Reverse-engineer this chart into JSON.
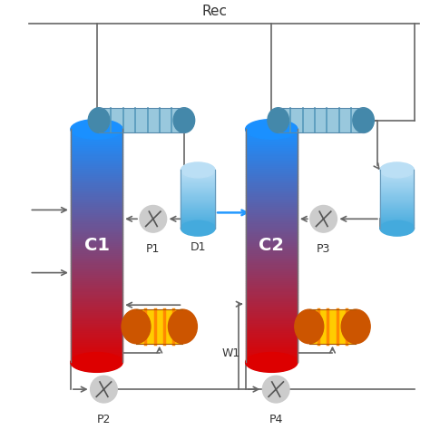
{
  "title": "Rec",
  "bg_color": "#ffffff",
  "C1_label": "C1",
  "C2_label": "C2",
  "D1_label": "D1",
  "P1_label": "P1",
  "P2_label": "P2",
  "P3_label": "P3",
  "P4_label": "P4",
  "W1_label": "W1",
  "col_top_color": "#1a90ff",
  "col_bot_color": "#dd0000",
  "cond_color1": "#99c8dd",
  "cond_color2": "#5599bb",
  "cond_cap_color": "#4488aa",
  "drum_top_color": "#bbdff5",
  "drum_bot_color": "#44aadd",
  "reb_body_color": "#ffcc00",
  "reb_stripe_color": "#ff8800",
  "reb_cap_color": "#cc5500",
  "pipe_color": "#666666",
  "pump_color": "#cccccc",
  "pipe_lw": 1.2,
  "arrow_ms": 10
}
